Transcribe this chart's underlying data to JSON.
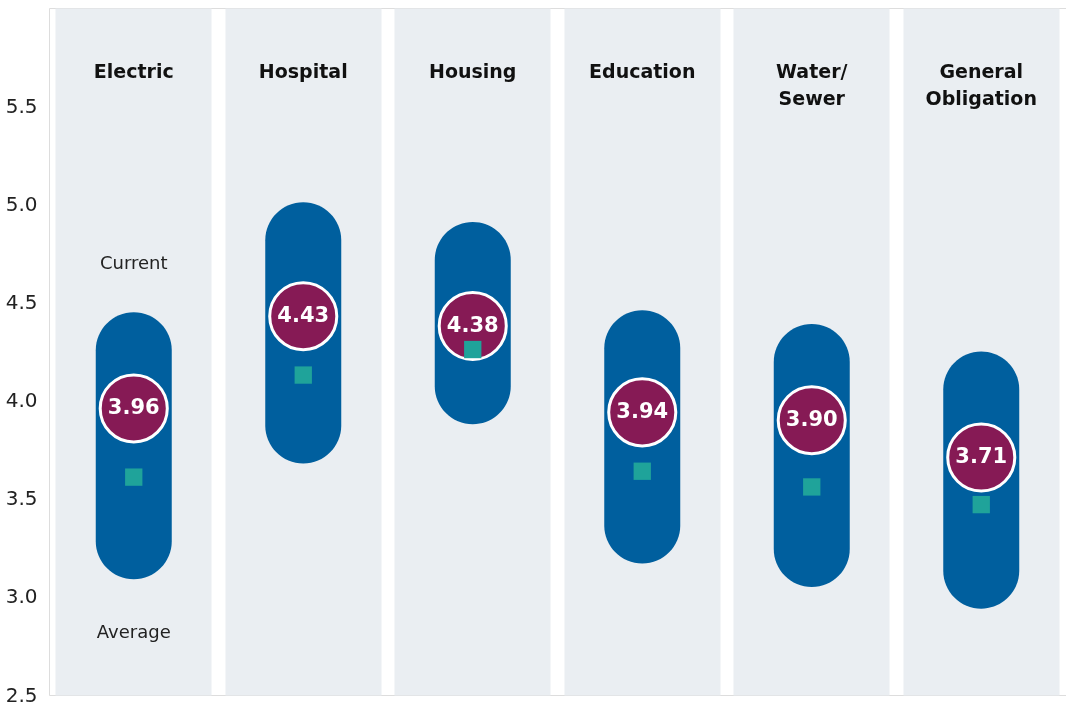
{
  "chart_data": {
    "type": "bar",
    "categories": [
      "Electric",
      "Hospital",
      "Housing",
      "Education",
      "Water/ Sewer",
      "General Obligation"
    ],
    "series": [
      {
        "color": "#005f9e",
        "base": [
          3.09,
          3.68,
          3.88,
          3.17,
          3.05,
          2.94
        ],
        "values": [
          1.36,
          1.33,
          1.03,
          1.29,
          1.34,
          1.31
        ]
      },
      {
        "type": "scatter",
        "marker": "circle",
        "color": "#861a55",
        "values": [
          3.96,
          4.43,
          4.38,
          3.94,
          3.9,
          3.71
        ],
        "value_labels": [
          "3.96",
          "4.43",
          "4.38",
          "3.94",
          "3.90",
          "3.71"
        ]
      },
      {
        "type": "scatter",
        "marker": "square",
        "color": "#1fa39a",
        "values": [
          3.61,
          4.13,
          4.26,
          3.64,
          3.56,
          3.47
        ]
      }
    ],
    "annotations": [
      "Current",
      "Average"
    ],
    "ylim": [
      2.5,
      6.0
    ],
    "yticks": [
      2.5,
      {
        "value": 3,
        "label": "3.0"
      },
      3.5,
      {
        "value": 4,
        "label": "4.0"
      },
      4.5,
      {
        "value": 5,
        "label": "5.0"
      },
      5.5
    ],
    "grid": "x"
  }
}
